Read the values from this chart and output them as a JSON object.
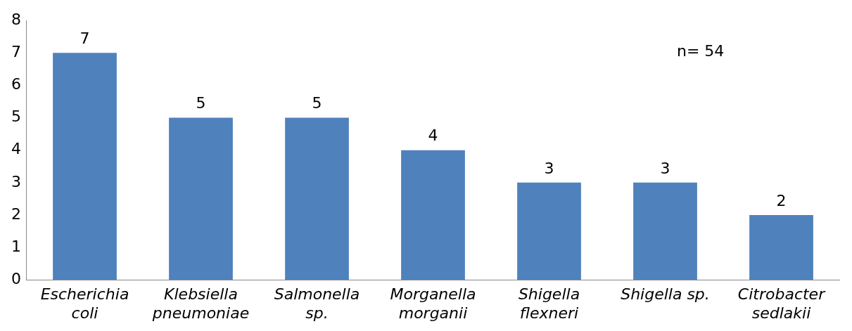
{
  "chart_data": {
    "type": "bar",
    "categories": [
      "Escherichia coli",
      "Klebsiella pneumoniae",
      "Salmonella sp.",
      "Morganella morganii",
      "Shigella flexneri",
      "Shigella sp.",
      "Citrobacter sedlakii"
    ],
    "values": [
      7,
      5,
      5,
      4,
      3,
      3,
      2
    ],
    "color": "#4f81bd",
    "ylim": [
      0,
      8
    ],
    "yticks": [
      0,
      1,
      2,
      3,
      4,
      5,
      6,
      7,
      8
    ],
    "grid": false,
    "legend": false,
    "data_labels": true,
    "annotations": [
      "n= 54"
    ]
  }
}
